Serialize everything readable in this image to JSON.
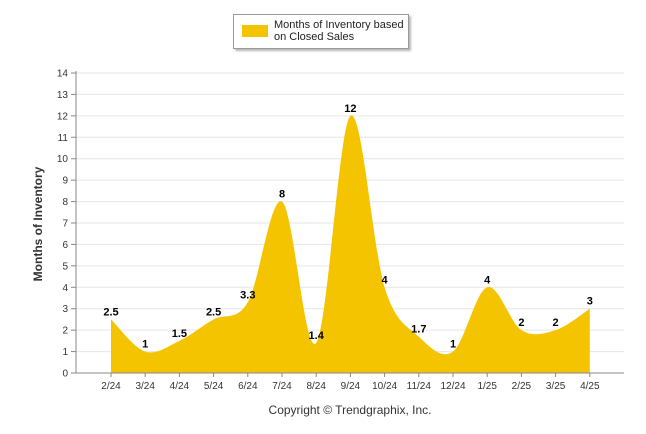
{
  "legend": {
    "label": "Months of Inventory based on Closed Sales"
  },
  "copyright": "Copyright © Trendgraphix, Inc.",
  "colors": {
    "fill": "#F5C400",
    "grid": "#e6e6e6",
    "axis": "#888888",
    "text": "#333333"
  },
  "chart_data": {
    "type": "area",
    "title": "",
    "ylabel": "Months of Inventory",
    "xlabel": "",
    "categories": [
      "2/24",
      "3/24",
      "4/24",
      "5/24",
      "6/24",
      "7/24",
      "8/24",
      "9/24",
      "10/24",
      "11/24",
      "12/24",
      "1/25",
      "2/25",
      "3/25",
      "4/25"
    ],
    "series": [
      {
        "name": "Months of Inventory based on Closed Sales",
        "values": [
          2.5,
          1,
          1.5,
          2.5,
          3.3,
          8,
          1.4,
          12,
          4,
          1.7,
          1,
          4,
          2,
          2,
          3
        ]
      }
    ],
    "data_labels": [
      "2.5",
      "1",
      "1.5",
      "2.5",
      "3.3",
      "8",
      "1.4",
      "12",
      "4",
      "1.7",
      "1",
      "4",
      "2",
      "2",
      "3"
    ],
    "ylim": [
      0,
      14
    ],
    "yticks": [
      0,
      1,
      2,
      3,
      4,
      5,
      6,
      7,
      8,
      9,
      10,
      11,
      12,
      13,
      14
    ],
    "grid": true,
    "smooth": true,
    "legend_position": "top-center"
  }
}
